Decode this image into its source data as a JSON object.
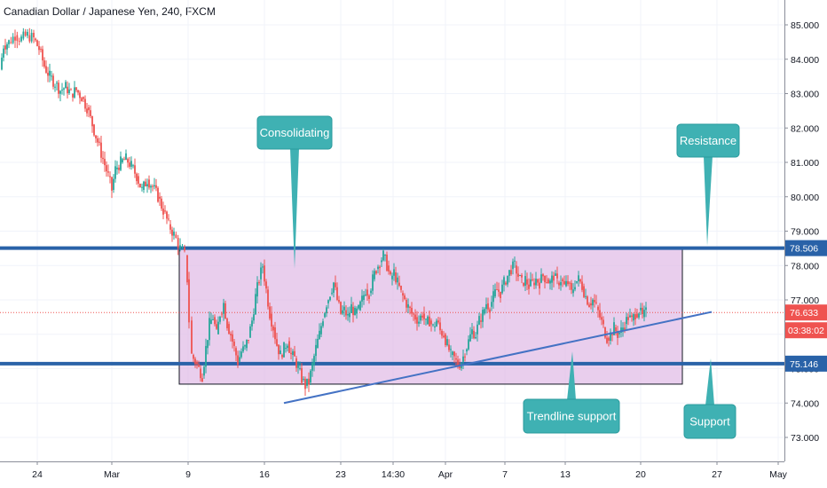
{
  "chart_data": {
    "type": "candlestick",
    "title": "Canadian Dollar / Japanese Yen, 240, FXCM",
    "x_tick_labels": [
      "24",
      "Mar",
      "9",
      "16",
      "23",
      "14:30",
      "Apr",
      "7",
      "13",
      "20",
      "27",
      "May"
    ],
    "y_tick_labels": [
      "85.000",
      "84.000",
      "83.000",
      "82.000",
      "81.000",
      "80.000",
      "79.000",
      "78.000",
      "77.000",
      "76.000",
      "75.000",
      "74.000",
      "73.000"
    ],
    "ylim": [
      72.7,
      85.5
    ],
    "grid": true,
    "price_series": [
      [
        0,
        83.7
      ],
      [
        4,
        84.4
      ],
      [
        10,
        84.5
      ],
      [
        17,
        84.7
      ],
      [
        24,
        84.6
      ],
      [
        31,
        84.7
      ],
      [
        38,
        84.6
      ],
      [
        44,
        84.3
      ],
      [
        50,
        83.8
      ],
      [
        56,
        83.5
      ],
      [
        62,
        83.3
      ],
      [
        68,
        83.1
      ],
      [
        74,
        83.2
      ],
      [
        80,
        83.0
      ],
      [
        86,
        83.1
      ],
      [
        92,
        82.9
      ],
      [
        98,
        82.6
      ],
      [
        104,
        82.1
      ],
      [
        110,
        81.6
      ],
      [
        116,
        81.1
      ],
      [
        122,
        80.6
      ],
      [
        126,
        80.2
      ],
      [
        130,
        80.8
      ],
      [
        136,
        81.0
      ],
      [
        142,
        81.1
      ],
      [
        148,
        80.9
      ],
      [
        154,
        80.6
      ],
      [
        160,
        80.2
      ],
      [
        166,
        80.5
      ],
      [
        172,
        80.3
      ],
      [
        178,
        80.0
      ],
      [
        184,
        79.6
      ],
      [
        190,
        79.2
      ],
      [
        196,
        78.9
      ],
      [
        203,
        78.5
      ],
      [
        208,
        78.3
      ],
      [
        211,
        77.6
      ],
      [
        213,
        76.4
      ],
      [
        216,
        75.4
      ],
      [
        220,
        75.2
      ],
      [
        224,
        75.0
      ],
      [
        228,
        74.8
      ],
      [
        232,
        75.6
      ],
      [
        236,
        76.3
      ],
      [
        240,
        76.5
      ],
      [
        244,
        76.0
      ],
      [
        248,
        76.6
      ],
      [
        252,
        76.9
      ],
      [
        256,
        76.3
      ],
      [
        260,
        76.0
      ],
      [
        264,
        75.6
      ],
      [
        268,
        75.2
      ],
      [
        272,
        75.5
      ],
      [
        276,
        75.6
      ],
      [
        280,
        75.9
      ],
      [
        284,
        76.4
      ],
      [
        288,
        77.1
      ],
      [
        292,
        77.6
      ],
      [
        296,
        78.0
      ],
      [
        300,
        77.3
      ],
      [
        304,
        76.6
      ],
      [
        308,
        76.2
      ],
      [
        312,
        75.7
      ],
      [
        316,
        75.4
      ],
      [
        320,
        75.6
      ],
      [
        324,
        75.8
      ],
      [
        328,
        75.4
      ],
      [
        332,
        75.3
      ],
      [
        336,
        75.0
      ],
      [
        340,
        74.7
      ],
      [
        344,
        74.5
      ],
      [
        348,
        74.6
      ],
      [
        352,
        75.1
      ],
      [
        356,
        75.6
      ],
      [
        360,
        76.0
      ],
      [
        364,
        76.5
      ],
      [
        368,
        76.9
      ],
      [
        372,
        77.2
      ],
      [
        376,
        77.5
      ],
      [
        380,
        77.0
      ],
      [
        384,
        76.6
      ],
      [
        388,
        76.7
      ],
      [
        392,
        76.5
      ],
      [
        396,
        76.8
      ],
      [
        400,
        76.6
      ],
      [
        404,
        76.7
      ],
      [
        408,
        77.0
      ],
      [
        412,
        77.3
      ],
      [
        416,
        77.2
      ],
      [
        420,
        77.6
      ],
      [
        424,
        77.9
      ],
      [
        428,
        78.1
      ],
      [
        432,
        78.3
      ],
      [
        436,
        78.0
      ],
      [
        440,
        77.6
      ],
      [
        444,
        77.8
      ],
      [
        448,
        77.5
      ],
      [
        452,
        77.2
      ],
      [
        456,
        77.0
      ],
      [
        460,
        76.8
      ],
      [
        464,
        76.6
      ],
      [
        468,
        76.5
      ],
      [
        472,
        76.4
      ],
      [
        476,
        76.6
      ],
      [
        480,
        76.3
      ],
      [
        484,
        76.4
      ],
      [
        488,
        76.2
      ],
      [
        492,
        76.4
      ],
      [
        496,
        76.1
      ],
      [
        500,
        76.0
      ],
      [
        504,
        75.7
      ],
      [
        508,
        75.4
      ],
      [
        512,
        75.3
      ],
      [
        516,
        75.1
      ],
      [
        520,
        75.2
      ],
      [
        524,
        75.5
      ],
      [
        528,
        75.8
      ],
      [
        532,
        76.1
      ],
      [
        536,
        76.0
      ],
      [
        540,
        76.4
      ],
      [
        544,
        76.6
      ],
      [
        548,
        76.9
      ],
      [
        552,
        76.8
      ],
      [
        556,
        77.1
      ],
      [
        560,
        77.3
      ],
      [
        564,
        77.2
      ],
      [
        568,
        77.5
      ],
      [
        572,
        77.7
      ],
      [
        576,
        77.9
      ],
      [
        580,
        78.0
      ],
      [
        584,
        77.7
      ],
      [
        588,
        77.5
      ],
      [
        592,
        77.6
      ],
      [
        596,
        77.4
      ],
      [
        600,
        77.5
      ],
      [
        604,
        77.6
      ],
      [
        608,
        77.5
      ],
      [
        612,
        77.7
      ],
      [
        616,
        77.6
      ],
      [
        620,
        77.5
      ],
      [
        624,
        77.7
      ],
      [
        628,
        77.5
      ],
      [
        632,
        77.6
      ],
      [
        636,
        77.4
      ],
      [
        640,
        77.5
      ],
      [
        644,
        77.2
      ],
      [
        648,
        77.5
      ],
      [
        652,
        77.6
      ],
      [
        656,
        77.4
      ],
      [
        660,
        77.1
      ],
      [
        664,
        76.9
      ],
      [
        668,
        77.0
      ],
      [
        672,
        76.8
      ],
      [
        676,
        76.5
      ],
      [
        680,
        76.2
      ],
      [
        684,
        75.9
      ],
      [
        688,
        76.0
      ],
      [
        692,
        76.2
      ],
      [
        696,
        76.0
      ],
      [
        700,
        76.1
      ],
      [
        704,
        76.3
      ],
      [
        708,
        76.5
      ],
      [
        712,
        76.4
      ],
      [
        716,
        76.6
      ],
      [
        720,
        76.7
      ],
      [
        724,
        76.5
      ],
      [
        728,
        76.63
      ]
    ],
    "levels": [
      {
        "name": "resistance",
        "value": 78.506,
        "label": "78.506",
        "color": "#2962a8"
      },
      {
        "name": "support",
        "value": 75.146,
        "label": "75.146",
        "color": "#2962a8"
      },
      {
        "name": "current",
        "value": 76.633,
        "label": "76.633",
        "color": "#ef5350"
      }
    ],
    "countdown": "03:38:02",
    "consolidation_zone": {
      "x_start": 202,
      "x_end": 769,
      "y_top": 78.506,
      "y_bottom": 74.55,
      "color": "#e1bee7"
    },
    "trendline": {
      "x1": 320,
      "y1": 74.0,
      "x2": 802,
      "y2": 76.65,
      "color": "#4472c4"
    },
    "callouts": [
      {
        "name": "consolidating",
        "text": "Consolidating"
      },
      {
        "name": "resistance",
        "text": "Resistance"
      },
      {
        "name": "trendline-support",
        "text": "Trendline support"
      },
      {
        "name": "support",
        "text": "Support"
      }
    ],
    "colors": {
      "up": "#26a69a",
      "down": "#ef5350",
      "callout": "#3fb1b3",
      "grid": "#f0f3fa"
    }
  }
}
